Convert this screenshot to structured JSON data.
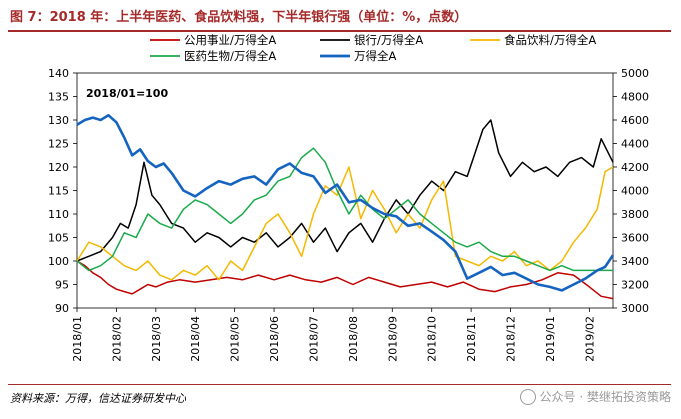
{
  "header": {
    "title": "图 7：2018 年：上半年医药、食品饮料强，下半年银行强（单位：%，点数）"
  },
  "footer": {
    "source": "资料来源：万得，信达证券研发中心",
    "watermark": "公众号 · 樊继拓投资策略"
  },
  "chart_data": {
    "type": "line",
    "annotation": "2018/01=100",
    "x_tick_labels": [
      "2018/01",
      "2018/02",
      "2018/03",
      "2018/04",
      "2018/05",
      "2018/06",
      "2018/07",
      "2018/08",
      "2018/09",
      "2018/10",
      "2018/11",
      "2018/12",
      "2019/01",
      "2019/02"
    ],
    "y_left": {
      "ticks": [
        "90",
        "95",
        "100",
        "105",
        "110",
        "115",
        "120",
        "125",
        "130",
        "135",
        "140"
      ],
      "range": [
        90,
        140
      ]
    },
    "y_right": {
      "ticks": [
        "3000",
        "3200",
        "3400",
        "3600",
        "3800",
        "4000",
        "4200",
        "4400",
        "4600",
        "4800",
        "5000"
      ],
      "range": [
        3000,
        5000
      ]
    },
    "legend": {
      "placement": "top",
      "columns": 3
    },
    "grid": false,
    "x_range": [
      0,
      13.6
    ],
    "series": [
      {
        "name": "公用事业/万得全A",
        "axis": "left",
        "color": "#c00000",
        "x": [
          0,
          0.2,
          0.4,
          0.6,
          0.8,
          1.0,
          1.2,
          1.4,
          1.6,
          1.8,
          2.0,
          2.3,
          2.6,
          3.0,
          3.4,
          3.8,
          4.2,
          4.6,
          5.0,
          5.4,
          5.8,
          6.2,
          6.6,
          7.0,
          7.4,
          7.8,
          8.2,
          8.6,
          9.0,
          9.4,
          9.8,
          10.2,
          10.6,
          11.0,
          11.4,
          11.8,
          12.2,
          12.6,
          13.0,
          13.3,
          13.6
        ],
        "y": [
          100,
          99,
          97.5,
          96.5,
          95,
          94,
          93.5,
          93,
          94,
          95,
          94.5,
          95.5,
          96,
          95.5,
          96,
          96.5,
          96,
          97,
          96,
          97,
          96,
          95.5,
          96.5,
          95,
          96.5,
          95.5,
          94.5,
          95,
          95.5,
          94.5,
          95.5,
          94,
          93.5,
          94.5,
          95,
          96,
          97.5,
          97,
          94.5,
          92.5,
          92
        ]
      },
      {
        "name": "银行/万得全A",
        "axis": "left",
        "color": "#000000",
        "x": [
          0,
          0.3,
          0.6,
          0.9,
          1.1,
          1.3,
          1.5,
          1.7,
          1.9,
          2.1,
          2.4,
          2.7,
          3.0,
          3.3,
          3.6,
          3.9,
          4.2,
          4.5,
          4.8,
          5.1,
          5.4,
          5.7,
          6.0,
          6.3,
          6.6,
          6.9,
          7.2,
          7.5,
          7.8,
          8.1,
          8.4,
          8.7,
          9.0,
          9.3,
          9.6,
          9.9,
          10.1,
          10.3,
          10.5,
          10.7,
          11.0,
          11.3,
          11.6,
          11.9,
          12.2,
          12.5,
          12.8,
          13.1,
          13.3,
          13.6
        ],
        "y": [
          100,
          101,
          102,
          105,
          108,
          107,
          112,
          121,
          114,
          112,
          108,
          107,
          104,
          106,
          105,
          103,
          105,
          104,
          106,
          103,
          105,
          108,
          104,
          107,
          102,
          106,
          108,
          104,
          109,
          113,
          110,
          114,
          117,
          115,
          119,
          118,
          123,
          128,
          130,
          123,
          118,
          121,
          119,
          120,
          118,
          121,
          122,
          120,
          126,
          121
        ]
      },
      {
        "name": "食品饮料/万得全A",
        "axis": "left",
        "color": "#f5b800",
        "x": [
          0,
          0.3,
          0.6,
          0.9,
          1.2,
          1.5,
          1.8,
          2.1,
          2.4,
          2.7,
          3.0,
          3.3,
          3.6,
          3.9,
          4.2,
          4.5,
          4.8,
          5.1,
          5.4,
          5.7,
          6.0,
          6.3,
          6.6,
          6.9,
          7.2,
          7.5,
          7.8,
          8.1,
          8.4,
          8.7,
          9.0,
          9.3,
          9.6,
          9.9,
          10.2,
          10.5,
          10.8,
          11.1,
          11.4,
          11.7,
          12.0,
          12.3,
          12.6,
          12.9,
          13.2,
          13.4,
          13.6
        ],
        "y": [
          100,
          104,
          103,
          101,
          99,
          98,
          100,
          97,
          96,
          98,
          97,
          99,
          96,
          100,
          98,
          103,
          108,
          110,
          106,
          101,
          110,
          116,
          114,
          120,
          109,
          115,
          111,
          106,
          110,
          107,
          113,
          117,
          101,
          100,
          99,
          101,
          100,
          102,
          99,
          100,
          98,
          100,
          104,
          107,
          111,
          119,
          120
        ]
      },
      {
        "name": "医药生物/万得全A",
        "axis": "left",
        "color": "#1aaa4a",
        "x": [
          0,
          0.3,
          0.6,
          0.9,
          1.2,
          1.5,
          1.8,
          2.1,
          2.4,
          2.7,
          3.0,
          3.3,
          3.6,
          3.9,
          4.2,
          4.5,
          4.8,
          5.1,
          5.4,
          5.7,
          6.0,
          6.3,
          6.6,
          6.9,
          7.2,
          7.5,
          7.8,
          8.1,
          8.4,
          8.7,
          9.0,
          9.3,
          9.6,
          9.9,
          10.2,
          10.5,
          10.8,
          11.1,
          11.4,
          11.7,
          12.0,
          12.3,
          12.6,
          12.9,
          13.2,
          13.6
        ],
        "y": [
          100,
          98,
          99,
          101,
          106,
          105,
          110,
          108,
          107,
          111,
          113,
          112,
          110,
          108,
          110,
          113,
          114,
          117,
          118,
          122,
          124,
          121,
          115,
          110,
          114,
          111,
          109,
          111,
          113,
          110,
          108,
          106,
          104,
          103,
          104,
          102,
          101,
          101,
          100,
          99,
          98,
          99,
          98,
          98,
          98,
          98
        ]
      },
      {
        "name": "万得全A",
        "axis": "right",
        "color": "#1565c0",
        "x": [
          0,
          0.2,
          0.4,
          0.6,
          0.8,
          1.0,
          1.2,
          1.4,
          1.6,
          1.8,
          2.0,
          2.2,
          2.4,
          2.7,
          3.0,
          3.3,
          3.6,
          3.9,
          4.2,
          4.5,
          4.8,
          5.1,
          5.4,
          5.7,
          6.0,
          6.3,
          6.6,
          6.9,
          7.2,
          7.5,
          7.8,
          8.1,
          8.4,
          8.7,
          9.0,
          9.3,
          9.6,
          9.9,
          10.2,
          10.5,
          10.8,
          11.1,
          11.4,
          11.7,
          12.0,
          12.3,
          12.6,
          12.9,
          13.2,
          13.4,
          13.6
        ],
        "y": [
          4560,
          4600,
          4620,
          4600,
          4640,
          4580,
          4450,
          4300,
          4350,
          4250,
          4200,
          4230,
          4150,
          4000,
          3950,
          4020,
          4080,
          4050,
          4100,
          4120,
          4050,
          4180,
          4230,
          4150,
          4120,
          3980,
          4050,
          3900,
          3920,
          3850,
          3800,
          3780,
          3700,
          3720,
          3650,
          3580,
          3480,
          3250,
          3300,
          3350,
          3280,
          3300,
          3250,
          3200,
          3180,
          3150,
          3200,
          3250,
          3320,
          3350,
          3450
        ]
      }
    ]
  }
}
